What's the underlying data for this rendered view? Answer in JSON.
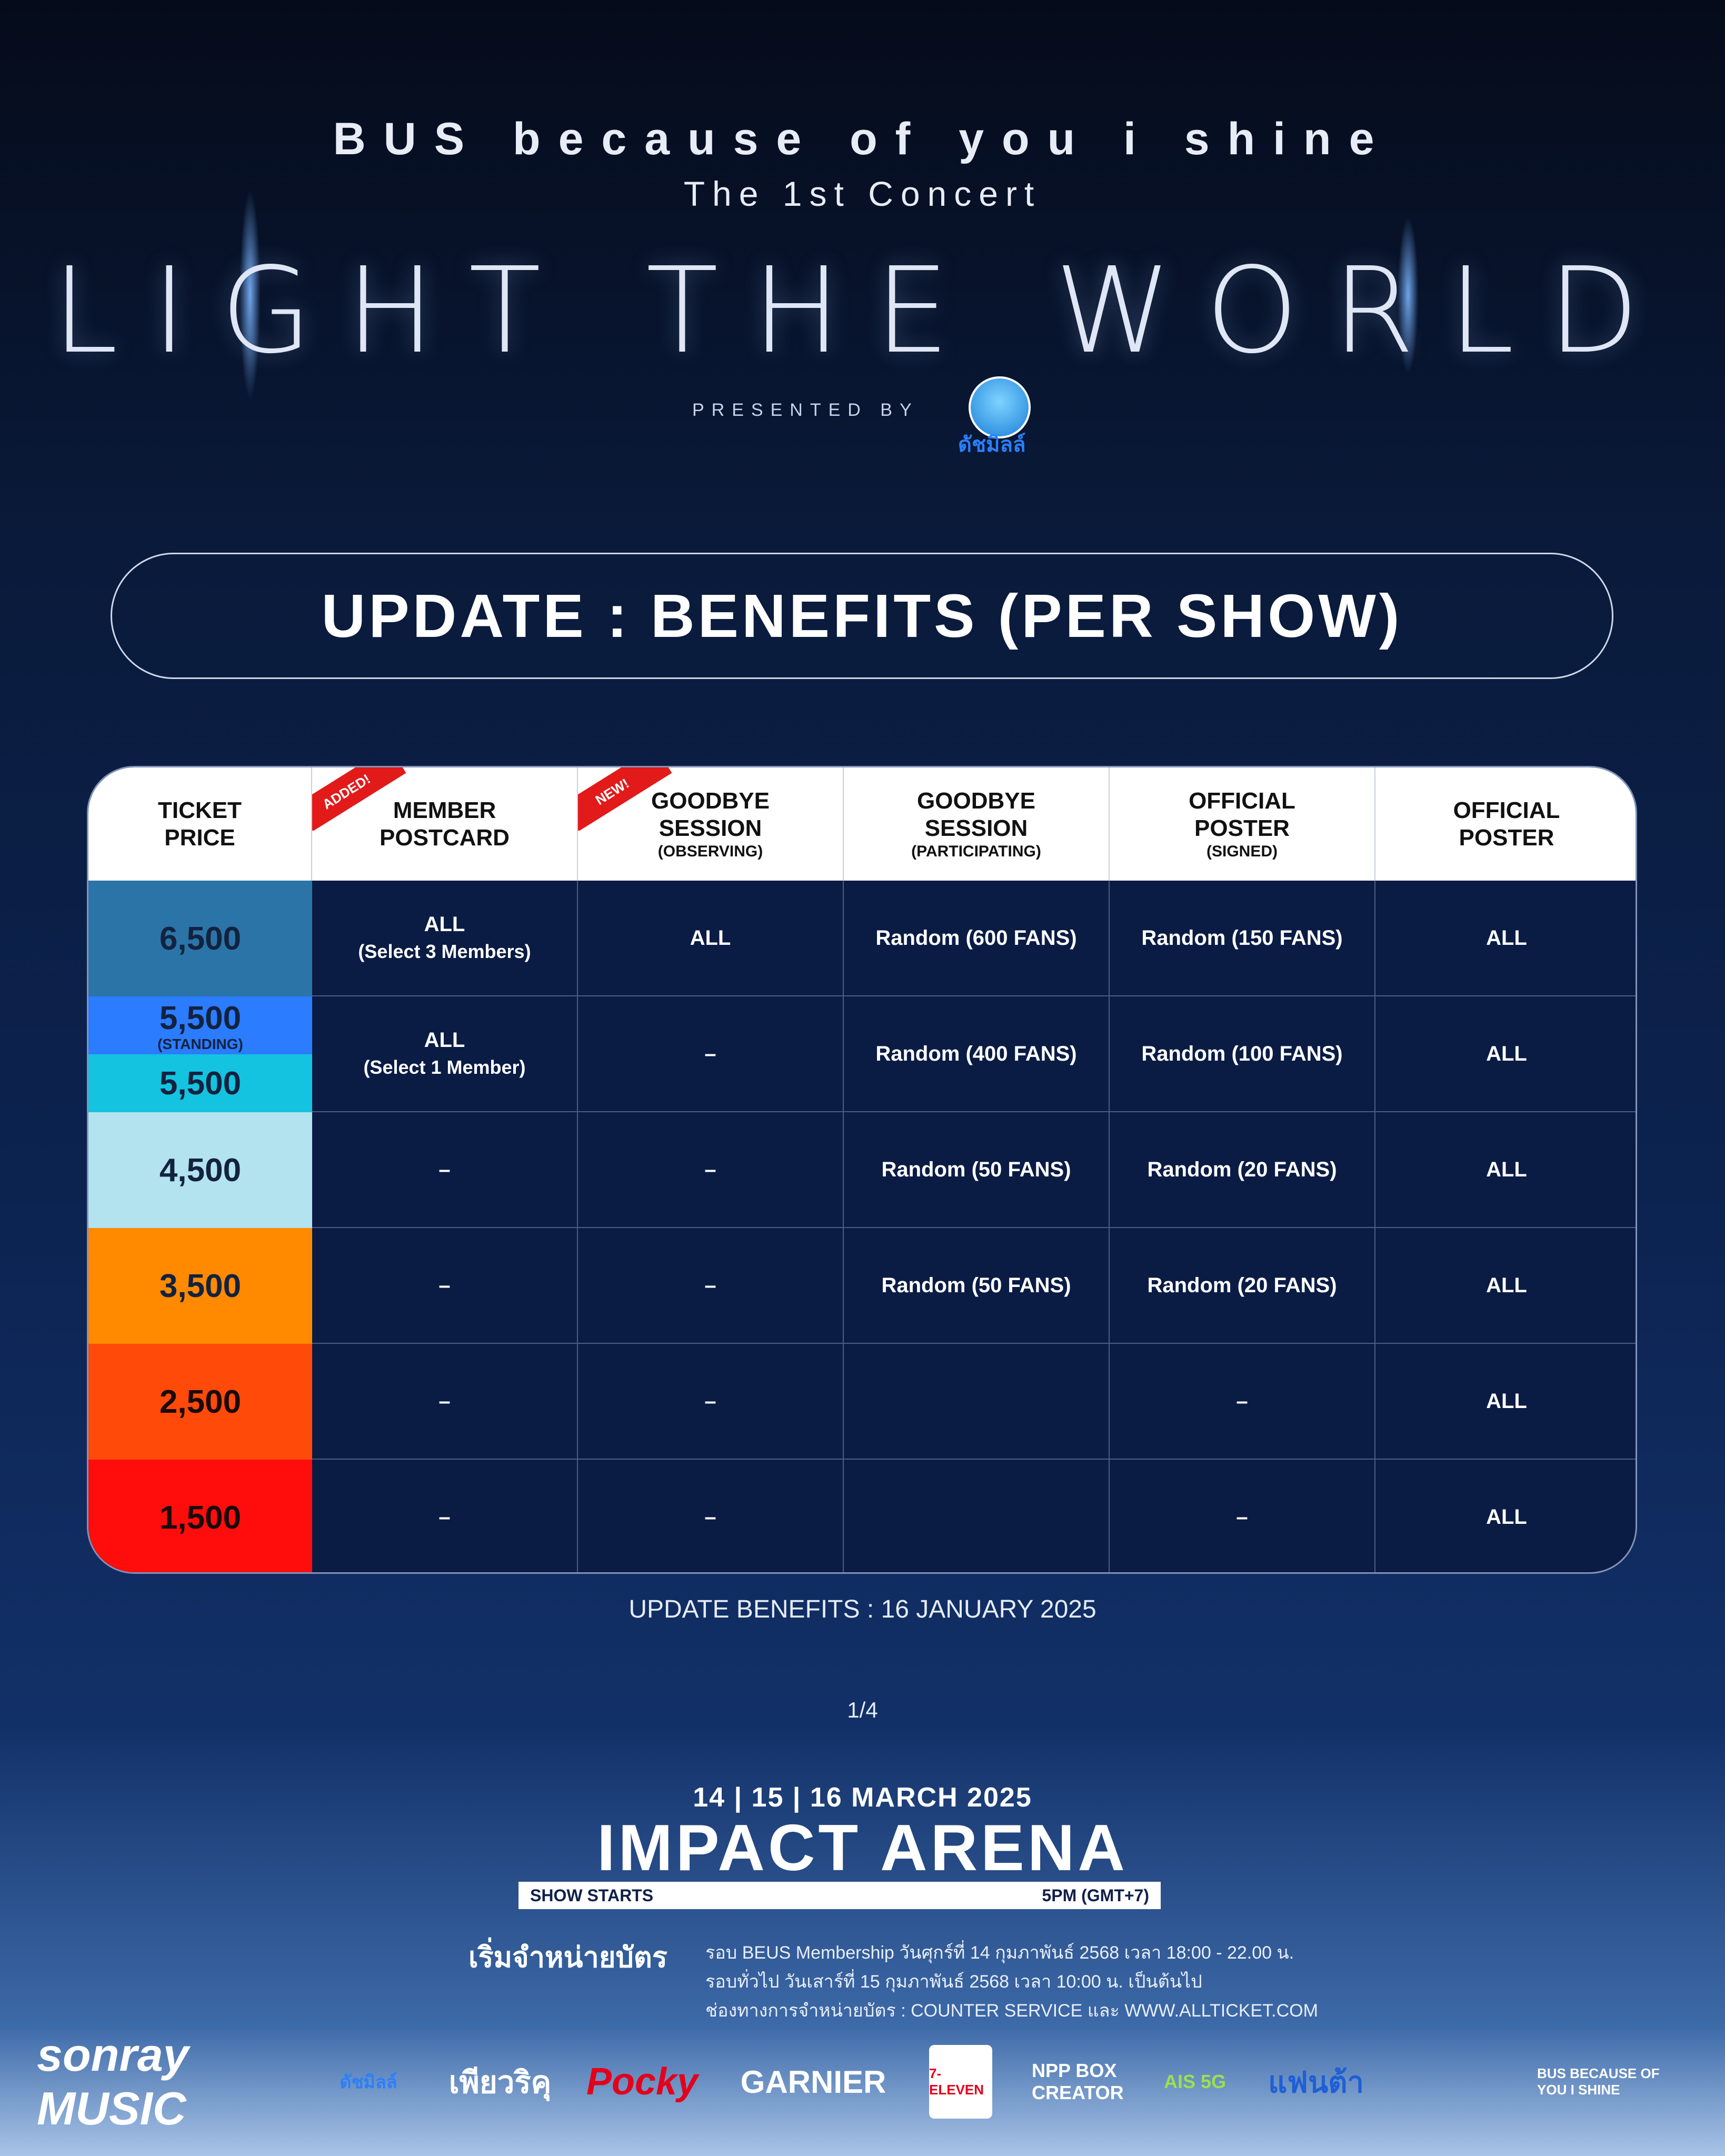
{
  "header": {
    "line1": "BUS because of you i shine",
    "line2": "The 1st Concert",
    "title": "LIGHT THE WORLD",
    "presented_by": "PRESENTED BY",
    "sponsor_name": "ดัชมิลล์"
  },
  "banner": {
    "text": "UPDATE : BENEFITS (PER SHOW)"
  },
  "table": {
    "headers": [
      {
        "title": "TICKET\nPRICE",
        "sub": "",
        "ribbon": ""
      },
      {
        "title": "MEMBER\nPOSTCARD",
        "sub": "",
        "ribbon": "ADDED!"
      },
      {
        "title": "GOODBYE\nSESSION",
        "sub": "(OBSERVING)",
        "ribbon": "NEW!"
      },
      {
        "title": "GOODBYE\nSESSION",
        "sub": "(PARTICIPATING)",
        "ribbon": ""
      },
      {
        "title": "OFFICIAL\nPOSTER",
        "sub": "(SIGNED)",
        "ribbon": ""
      },
      {
        "title": "OFFICIAL\nPOSTER",
        "sub": "",
        "ribbon": ""
      }
    ],
    "prices": [
      {
        "label": "6,500",
        "color": "#2a74a8"
      },
      {
        "label": "5,500",
        "note": "(STANDING)",
        "color": "#2b7cff"
      },
      {
        "label": "5,500",
        "color": "#14c3e0"
      },
      {
        "label": "4,500",
        "color": "#b2e3ef"
      },
      {
        "label": "3,500",
        "color": "#ff8a00"
      },
      {
        "label": "2,500",
        "color": "#ff4a0a"
      },
      {
        "label": "1,500",
        "color": "#ff0d0d"
      }
    ],
    "rows": [
      {
        "postcard": "ALL",
        "postcard_sub": "(Select 3 Members)",
        "observing": "ALL",
        "participating": "Random (600 FANS)",
        "signed": "Random (150 FANS)",
        "poster": "ALL"
      },
      {
        "postcard": "ALL",
        "postcard_sub": "(Select 1 Member)",
        "observing": "–",
        "participating": "Random (400 FANS)",
        "signed": "Random (100 FANS)",
        "poster": "ALL"
      },
      {
        "postcard": "–",
        "postcard_sub": "",
        "observing": "–",
        "participating": "Random (50 FANS)",
        "signed": "Random (20 FANS)",
        "poster": "ALL"
      },
      {
        "postcard": "–",
        "postcard_sub": "",
        "observing": "–",
        "participating": "Random (50 FANS)",
        "signed": "Random (20 FANS)",
        "poster": "ALL"
      },
      {
        "postcard": "–",
        "postcard_sub": "",
        "observing": "–",
        "participating": "",
        "signed": "–",
        "poster": "ALL"
      },
      {
        "postcard": "–",
        "postcard_sub": "",
        "observing": "–",
        "participating": "",
        "signed": "–",
        "poster": "ALL"
      }
    ]
  },
  "update_note": "UPDATE BENEFITS : 16 JANUARY 2025",
  "pager": "1/4",
  "event": {
    "dates": "14 | 15 | 16 MARCH 2025",
    "venue": "IMPACT ARENA",
    "show_starts_label": "SHOW STARTS",
    "show_time": "5PM (GMT+7)"
  },
  "sale": {
    "title": "เริ่มจำหน่ายบัตร",
    "line1": "รอบ BEUS Membership วันศุกร์ที่ 14 กุมภาพันธ์ 2568 เวลา 18:00 - 22.00 น.",
    "line2": "รอบทั่วไป วันเสาร์ที่ 15 กุมภาพันธ์ 2568 เวลา 10:00 น. เป็นต้นไป",
    "line3": "ช่องทางการจำหน่ายบัตร : COUNTER SERVICE และ WWW.ALLTICKET.COM"
  },
  "logos": [
    "sonray MUSIC",
    "ดัชมิลล์",
    "เพียวริคุ",
    "Pocky",
    "GARNIER",
    "7-ELEVEN",
    "NPP BOX CREATOR",
    "AIS 5G",
    "แฟนต้า",
    "BUS BECAUSE OF YOU I SHINE"
  ]
}
